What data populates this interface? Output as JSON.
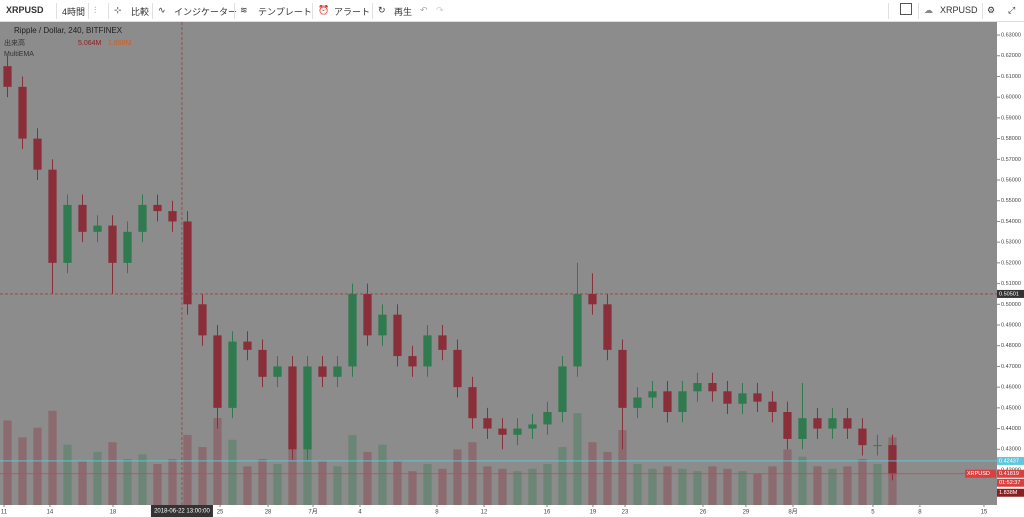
{
  "toolbar": {
    "symbol": "XRPUSD",
    "interval": "4時間",
    "compare": "比較",
    "indicators": "インジケーター",
    "templates": "テンプレート",
    "alert": "アラート",
    "replay": "再生",
    "right_symbol": "XRPUSD"
  },
  "chart_data": {
    "type": "candlestick",
    "title": "Ripple / Dollar, 240, BITFINEX",
    "legend": {
      "volume": "出来高",
      "volume_value": "5.064M",
      "volume_ma": "1.868M",
      "ema": "MultiEMA"
    },
    "up_color": "#2f7a4e",
    "down_color": "#8a2f3a",
    "background": "#8c8c8c",
    "x": [
      0,
      1,
      2,
      3,
      4,
      5,
      6,
      7,
      8,
      9,
      10,
      11,
      12,
      13,
      14,
      15,
      16,
      17,
      18,
      19,
      20,
      21,
      22,
      23,
      24,
      25,
      26,
      27,
      28,
      29,
      30,
      31,
      32,
      33,
      34,
      35,
      36,
      37,
      38,
      39,
      40,
      41,
      42,
      43,
      44,
      45,
      46,
      47,
      48,
      49,
      50,
      51,
      52,
      53,
      54,
      55,
      56,
      57,
      58,
      59
    ],
    "open": [
      0.615,
      0.605,
      0.58,
      0.565,
      0.52,
      0.548,
      0.535,
      0.538,
      0.52,
      0.535,
      0.548,
      0.545,
      0.54,
      0.5,
      0.485,
      0.45,
      0.482,
      0.478,
      0.465,
      0.47,
      0.43,
      0.47,
      0.465,
      0.47,
      0.505,
      0.485,
      0.495,
      0.475,
      0.47,
      0.485,
      0.478,
      0.46,
      0.445,
      0.44,
      0.437,
      0.44,
      0.442,
      0.448,
      0.47,
      0.505,
      0.5,
      0.478,
      0.45,
      0.455,
      0.458,
      0.448,
      0.458,
      0.462,
      0.458,
      0.452,
      0.457,
      0.453,
      0.448,
      0.435,
      0.445,
      0.44,
      0.445,
      0.44,
      0.432,
      0.432
    ],
    "high": [
      0.62,
      0.61,
      0.585,
      0.57,
      0.553,
      0.553,
      0.543,
      0.543,
      0.54,
      0.553,
      0.553,
      0.55,
      0.545,
      0.505,
      0.49,
      0.487,
      0.487,
      0.483,
      0.475,
      0.475,
      0.475,
      0.475,
      0.475,
      0.51,
      0.51,
      0.5,
      0.5,
      0.48,
      0.49,
      0.49,
      0.483,
      0.465,
      0.45,
      0.445,
      0.445,
      0.447,
      0.453,
      0.475,
      0.52,
      0.515,
      0.505,
      0.483,
      0.46,
      0.463,
      0.463,
      0.463,
      0.467,
      0.467,
      0.463,
      0.462,
      0.462,
      0.458,
      0.453,
      0.462,
      0.45,
      0.45,
      0.45,
      0.445,
      0.437,
      0.437
    ],
    "low": [
      0.6,
      0.575,
      0.56,
      0.505,
      0.515,
      0.53,
      0.53,
      0.505,
      0.515,
      0.53,
      0.54,
      0.535,
      0.495,
      0.48,
      0.44,
      0.445,
      0.473,
      0.46,
      0.46,
      0.425,
      0.425,
      0.46,
      0.46,
      0.465,
      0.48,
      0.48,
      0.47,
      0.465,
      0.465,
      0.473,
      0.455,
      0.44,
      0.435,
      0.43,
      0.432,
      0.435,
      0.437,
      0.443,
      0.465,
      0.495,
      0.473,
      0.43,
      0.445,
      0.45,
      0.443,
      0.443,
      0.453,
      0.453,
      0.447,
      0.447,
      0.448,
      0.443,
      0.43,
      0.43,
      0.435,
      0.435,
      0.435,
      0.427,
      0.427,
      0.415
    ],
    "close": [
      0.605,
      0.58,
      0.565,
      0.52,
      0.548,
      0.535,
      0.538,
      0.52,
      0.535,
      0.548,
      0.545,
      0.54,
      0.5,
      0.485,
      0.45,
      0.482,
      0.478,
      0.465,
      0.47,
      0.43,
      0.47,
      0.465,
      0.47,
      0.505,
      0.485,
      0.495,
      0.475,
      0.47,
      0.485,
      0.478,
      0.46,
      0.445,
      0.44,
      0.437,
      0.44,
      0.442,
      0.448,
      0.47,
      0.505,
      0.5,
      0.478,
      0.45,
      0.455,
      0.458,
      0.448,
      0.458,
      0.462,
      0.458,
      0.452,
      0.457,
      0.453,
      0.448,
      0.435,
      0.445,
      0.44,
      0.445,
      0.44,
      0.432,
      0.432,
      0.418
    ],
    "volume": [
      3.5,
      2.8,
      3.2,
      3.9,
      2.5,
      1.8,
      2.2,
      2.6,
      1.9,
      2.1,
      1.7,
      1.9,
      2.9,
      2.4,
      3.6,
      2.7,
      1.6,
      1.9,
      1.7,
      3.4,
      3.0,
      1.8,
      1.6,
      2.9,
      2.2,
      2.5,
      1.8,
      1.4,
      1.7,
      1.5,
      2.3,
      2.6,
      1.6,
      1.5,
      1.4,
      1.5,
      1.7,
      2.4,
      3.8,
      2.6,
      2.2,
      3.1,
      1.7,
      1.5,
      1.6,
      1.5,
      1.4,
      1.6,
      1.5,
      1.4,
      1.3,
      1.6,
      2.3,
      2.0,
      1.6,
      1.5,
      1.6,
      1.9,
      1.7,
      2.8
    ],
    "volume_ylim": [
      0,
      20
    ],
    "xlim": [
      -0.5,
      65.97
    ],
    "ylim": [
      0.4031,
      0.6363
    ],
    "xticks": [
      {
        "value": -0.23,
        "label": "11"
      },
      {
        "value": 2.83,
        "label": "14"
      },
      {
        "value": 7.03,
        "label": "18"
      },
      {
        "value": 14.17,
        "label": "25"
      },
      {
        "value": 17.37,
        "label": "28"
      },
      {
        "value": 20.37,
        "label": "7月"
      },
      {
        "value": 23.5,
        "label": "4"
      },
      {
        "value": 28.63,
        "label": "8"
      },
      {
        "value": 31.77,
        "label": "12"
      },
      {
        "value": 35.97,
        "label": "16"
      },
      {
        "value": 39.03,
        "label": "19"
      },
      {
        "value": 41.17,
        "label": "23"
      },
      {
        "value": 46.37,
        "label": "26"
      },
      {
        "value": 49.23,
        "label": "29"
      },
      {
        "value": 52.37,
        "label": "8月"
      },
      {
        "value": 57.7,
        "label": "5"
      },
      {
        "value": 60.83,
        "label": "8"
      },
      {
        "value": 65.1,
        "label": "15"
      }
    ],
    "yticks": [
      {
        "value": 0.42,
        "label": "0.42000"
      },
      {
        "value": 0.43,
        "label": "0.43000"
      },
      {
        "value": 0.44,
        "label": "0.44000"
      },
      {
        "value": 0.45,
        "label": "0.45000"
      },
      {
        "value": 0.46,
        "label": "0.46000"
      },
      {
        "value": 0.47,
        "label": "0.47000"
      },
      {
        "value": 0.48,
        "label": "0.48000"
      },
      {
        "value": 0.49,
        "label": "0.49000"
      },
      {
        "value": 0.5,
        "label": "0.50000"
      },
      {
        "value": 0.51,
        "label": "0.51000"
      },
      {
        "value": 0.52,
        "label": "0.52000"
      },
      {
        "value": 0.53,
        "label": "0.53000"
      },
      {
        "value": 0.54,
        "label": "0.54000"
      },
      {
        "value": 0.55,
        "label": "0.55000"
      },
      {
        "value": 0.56,
        "label": "0.56000"
      },
      {
        "value": 0.57,
        "label": "0.57000"
      },
      {
        "value": 0.58,
        "label": "0.58000"
      },
      {
        "value": 0.59,
        "label": "0.59000"
      },
      {
        "value": 0.6,
        "label": "0.60000"
      },
      {
        "value": 0.61,
        "label": "0.61000"
      },
      {
        "value": 0.62,
        "label": "0.62000"
      },
      {
        "value": 0.63,
        "label": "0.63000"
      }
    ],
    "crosshair": {
      "x": 11.63,
      "x_label": "2018-06-22 13:00:00",
      "y": 0.50501,
      "color": "#a33a3a"
    },
    "price_lines": [
      {
        "value": 0.42437,
        "color": "#5fc8dc"
      },
      {
        "value": 0.41819,
        "color": "#d94040",
        "symbol": "XRPUSD",
        "countdown": "01:52:37",
        "volume_label": "1.838M"
      }
    ]
  }
}
